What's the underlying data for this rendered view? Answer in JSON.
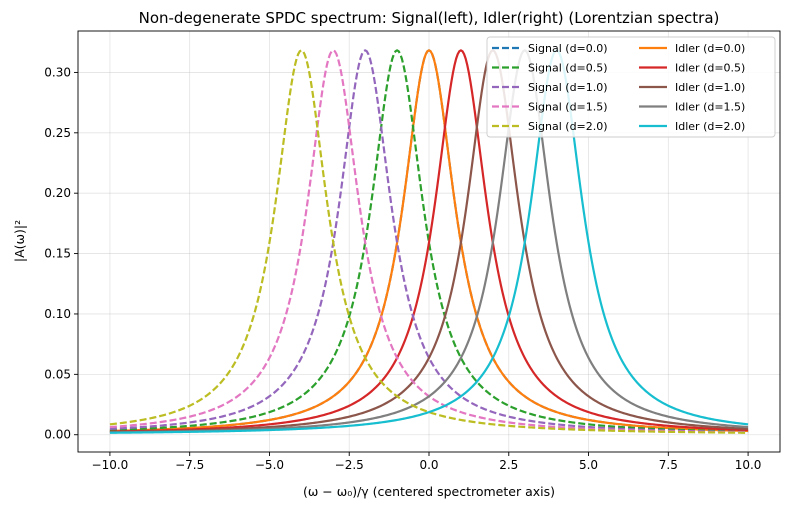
{
  "chart_data": {
    "type": "line",
    "title": "Non-degenerate SPDC spectrum: Signal(left), Idler(right) (Lorentzian spectra)",
    "xlabel": "(ω − ω₀)/γ  (centered spectrometer axis)",
    "ylabel": "|A(ω)|²",
    "xlim": [
      -11.0,
      11.0
    ],
    "ylim": [
      -0.0143,
      0.3343
    ],
    "x_ticks": [
      -10.0,
      -7.5,
      -5.0,
      -2.5,
      0.0,
      2.5,
      5.0,
      7.5,
      10.0
    ],
    "x_tick_labels": [
      "−10.0",
      "−7.5",
      "−5.0",
      "−2.5",
      "0.0",
      "2.5",
      "5.0",
      "7.5",
      "10.0"
    ],
    "y_ticks": [
      0.0,
      0.05,
      0.1,
      0.15,
      0.2,
      0.25,
      0.3
    ],
    "y_tick_labels": [
      "0.00",
      "0.05",
      "0.10",
      "0.15",
      "0.20",
      "0.25",
      "0.30"
    ],
    "grid": true,
    "legend_position": "top-right",
    "legend_columns": 2,
    "x_range": [
      -10.0,
      10.0
    ],
    "peak_height": 0.3183,
    "half_width": 1.0,
    "series": [
      {
        "name": "Signal (d=0.0)",
        "center": 0.0,
        "style": "dashed",
        "color": "#1f77b4"
      },
      {
        "name": "Idler (d=0.0)",
        "center": 0.0,
        "style": "solid",
        "color": "#ff7f0e"
      },
      {
        "name": "Signal (d=0.5)",
        "center": -1.0,
        "style": "dashed",
        "color": "#2ca02c"
      },
      {
        "name": "Idler  (d=0.5)",
        "center": 1.0,
        "style": "solid",
        "color": "#d62728"
      },
      {
        "name": "Signal (d=1.0)",
        "center": -2.0,
        "style": "dashed",
        "color": "#9467bd"
      },
      {
        "name": "Idler  (d=1.0)",
        "center": 2.0,
        "style": "solid",
        "color": "#8c564b"
      },
      {
        "name": "Signal (d=1.5)",
        "center": -3.0,
        "style": "dashed",
        "color": "#e377c2"
      },
      {
        "name": "Idler  (d=1.5)",
        "center": 3.0,
        "style": "solid",
        "color": "#7f7f7f"
      },
      {
        "name": "Signal (d=2.0)",
        "center": -4.0,
        "style": "dashed",
        "color": "#bcbd22"
      },
      {
        "name": "Idler  (d=2.0)",
        "center": 4.0,
        "style": "solid",
        "color": "#17becf"
      }
    ]
  }
}
